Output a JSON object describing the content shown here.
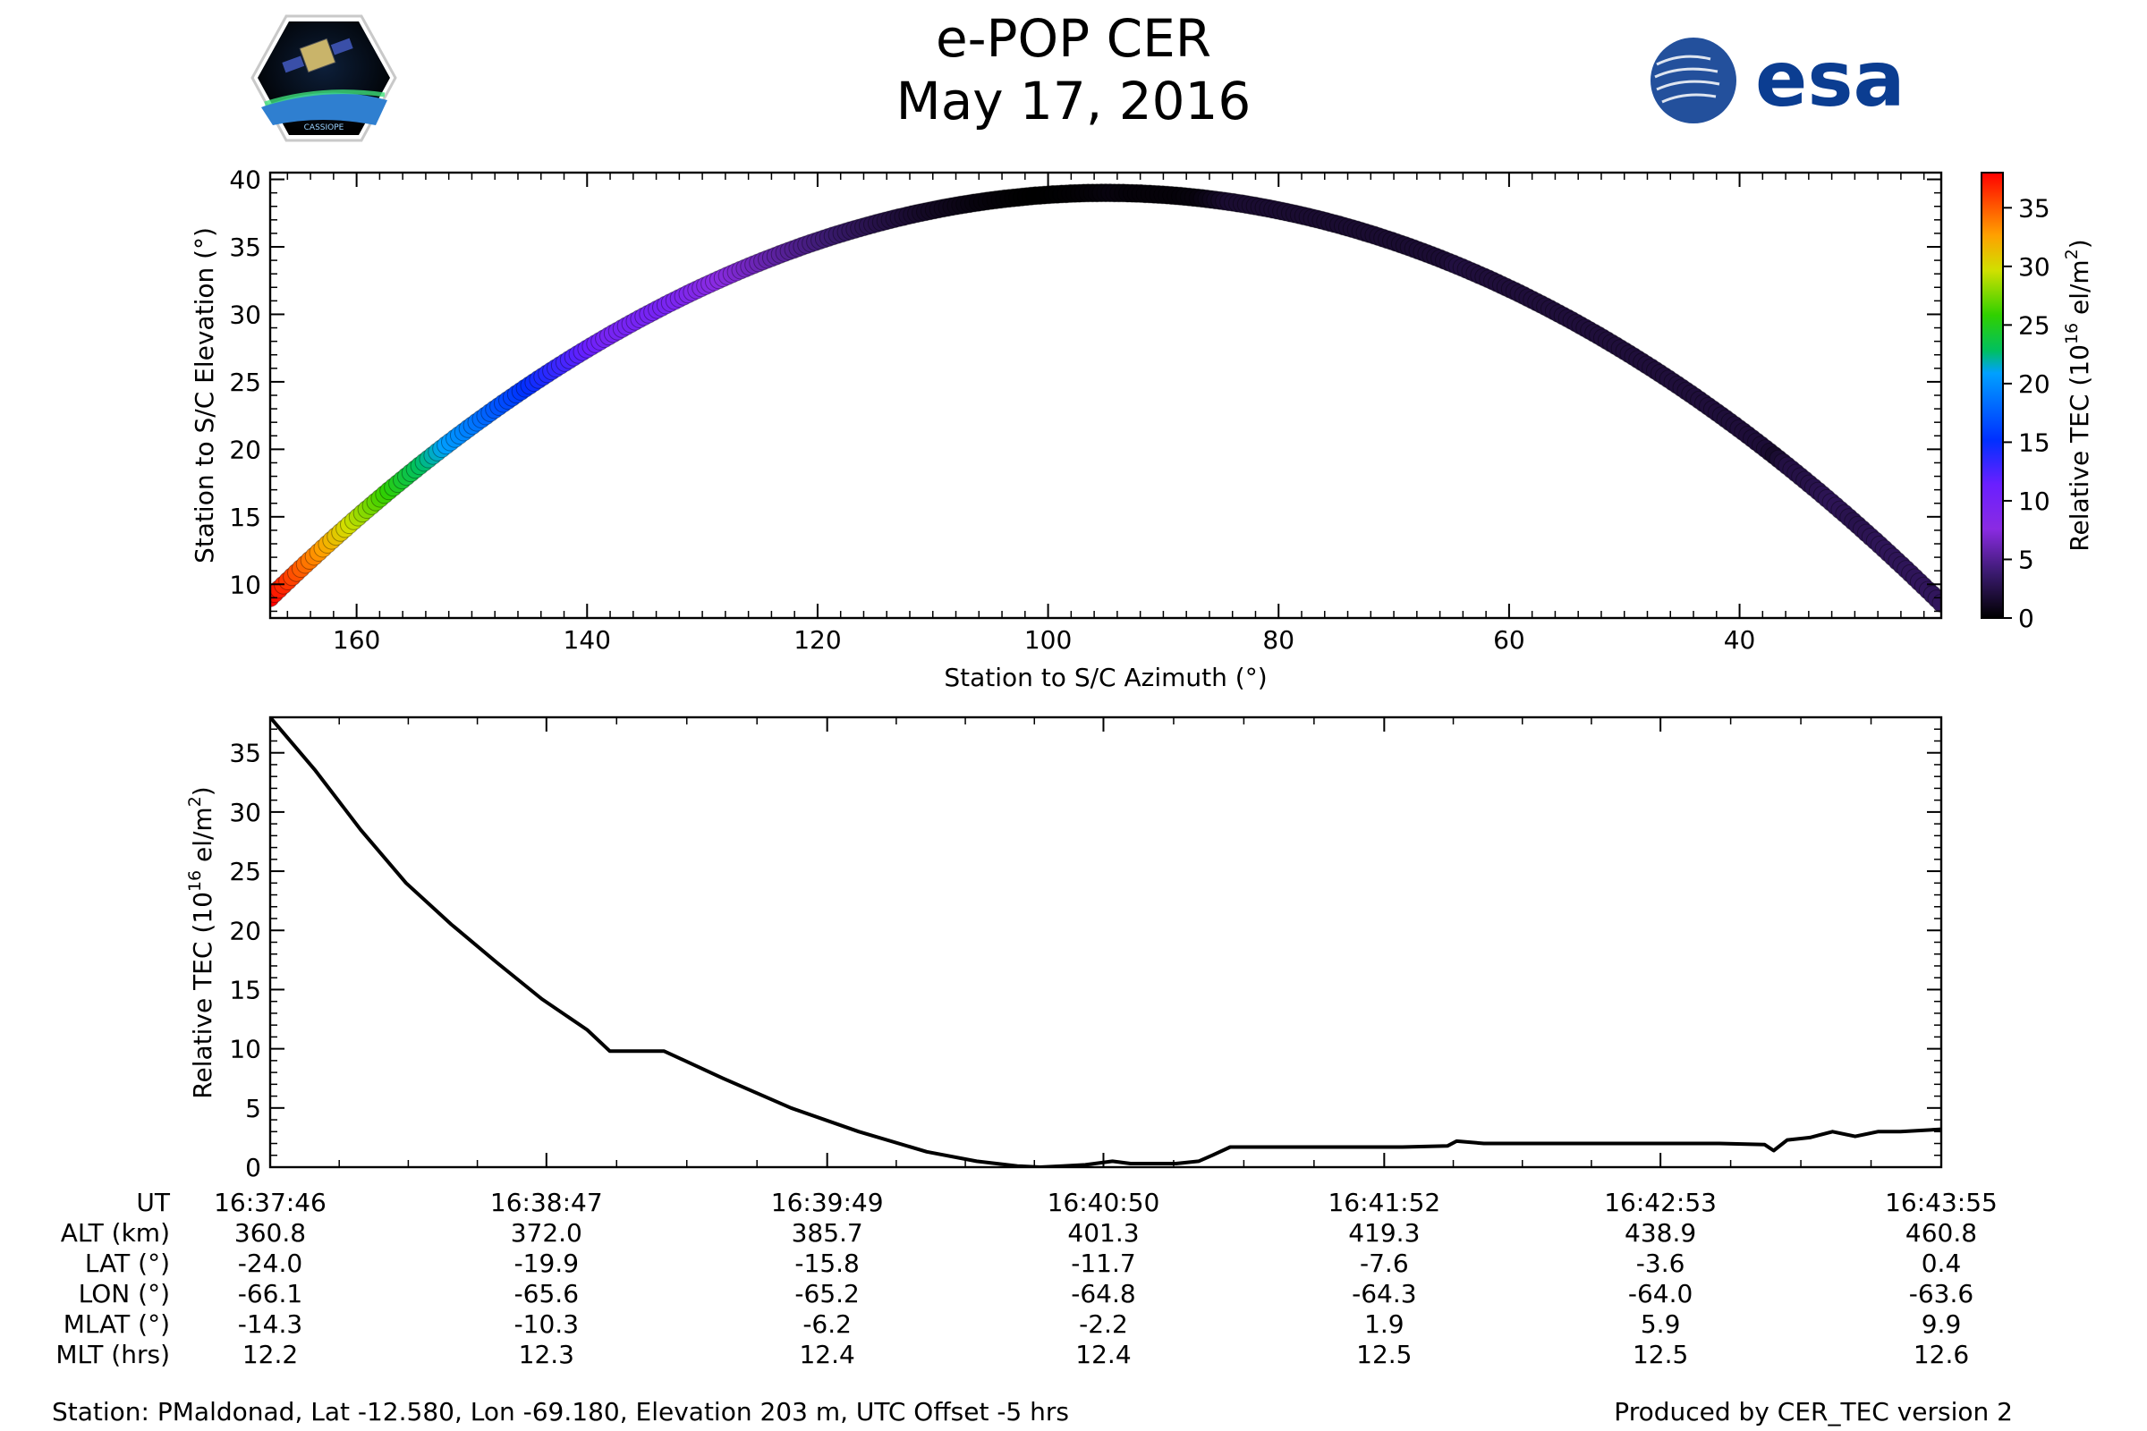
{
  "title": "e-POP CER",
  "date": "May 17, 2016",
  "logos": {
    "left": {
      "name": "cassiope-mission-badge",
      "text": "CASSIOPE"
    },
    "right": {
      "name": "esa-logo",
      "text": "esa",
      "color": "#0b3d91"
    }
  },
  "chart_data": [
    {
      "type": "scatter",
      "name": "elevation-vs-azimuth",
      "xlabel": "Station to S/C Azimuth (°)",
      "ylabel": "Station to S/C Elevation (°)",
      "xlim": [
        167.5,
        22.5
      ],
      "ylim": [
        7.5,
        40.5
      ],
      "x_ticks": [
        160,
        140,
        120,
        100,
        80,
        60,
        40
      ],
      "y_ticks": [
        10,
        15,
        20,
        25,
        30,
        35,
        40
      ],
      "color_by": "Relative TEC",
      "track": {
        "az_start": 167.5,
        "az_end": 22.5,
        "az_peak": 95,
        "el_peak": 39,
        "el_start": 9,
        "el_end": 8.6
      },
      "colorbar": {
        "label": "Relative TEC (10¹⁶ el/m²)",
        "label_main": "Relative TEC (10",
        "label_exp": "16",
        "label_unit": " el/m",
        "label_sq": "2",
        "label_close": ")",
        "range": [
          0,
          38
        ],
        "ticks": [
          0,
          5,
          10,
          15,
          20,
          25,
          30,
          35
        ],
        "stops": [
          {
            "v": 0.0,
            "c": "#000000"
          },
          {
            "v": 0.1,
            "c": "#3a1a6e"
          },
          {
            "v": 0.2,
            "c": "#8a2be2"
          },
          {
            "v": 0.3,
            "c": "#6a1fff"
          },
          {
            "v": 0.4,
            "c": "#0030ff"
          },
          {
            "v": 0.55,
            "c": "#00a0ff"
          },
          {
            "v": 0.6,
            "c": "#00c060"
          },
          {
            "v": 0.68,
            "c": "#30d000"
          },
          {
            "v": 0.78,
            "c": "#d0e000"
          },
          {
            "v": 0.86,
            "c": "#ffa000"
          },
          {
            "v": 1.0,
            "c": "#ff0000"
          }
        ]
      }
    },
    {
      "type": "line",
      "name": "relative-tec-vs-time",
      "ylabel": "Relative TEC (10¹⁶ el/m²)",
      "ylabel_main": "Relative TEC (10",
      "ylabel_exp": "16",
      "ylabel_unit": " el/m",
      "ylabel_sq": "2",
      "ylabel_close": ")",
      "xlim_s": [
        0,
        369
      ],
      "ylim": [
        0,
        38
      ],
      "y_ticks": [
        0,
        5,
        10,
        15,
        20,
        25,
        30,
        35
      ],
      "x_tick_s": [
        0,
        61,
        123,
        184,
        246,
        307,
        369
      ],
      "series": [
        {
          "name": "Relative TEC",
          "x": [
            0,
            10,
            20,
            30,
            40,
            50,
            60,
            70,
            75,
            87,
            100,
            115,
            130,
            145,
            156,
            165,
            170,
            175,
            180,
            186,
            190,
            200,
            205,
            208,
            212,
            220,
            240,
            250,
            260,
            262,
            268,
            280,
            300,
            320,
            330,
            332,
            335,
            340,
            345,
            350,
            355,
            360,
            369
          ],
          "values": [
            38,
            33.5,
            28.5,
            24,
            20.5,
            17.3,
            14.2,
            11.6,
            9.8,
            9.8,
            7.5,
            5,
            3,
            1.3,
            0.5,
            0.1,
            0,
            0.1,
            0.2,
            0.5,
            0.3,
            0.3,
            0.5,
            1.0,
            1.7,
            1.7,
            1.7,
            1.7,
            1.8,
            2.2,
            2.0,
            2.0,
            2.0,
            2.0,
            1.9,
            1.4,
            2.3,
            2.5,
            3.0,
            2.6,
            3.0,
            3.0,
            3.2
          ]
        }
      ]
    }
  ],
  "table": {
    "row_labels": [
      "UT",
      "ALT (km)",
      "LAT (°)",
      "LON (°)",
      "MLAT (°)",
      "MLT (hrs)"
    ],
    "columns": [
      [
        "16:37:46",
        "360.8",
        "-24.0",
        "-66.1",
        "-14.3",
        "12.2"
      ],
      [
        "16:38:47",
        "372.0",
        "-19.9",
        "-65.6",
        "-10.3",
        "12.3"
      ],
      [
        "16:39:49",
        "385.7",
        "-15.8",
        "-65.2",
        "-6.2",
        "12.4"
      ],
      [
        "16:40:50",
        "401.3",
        "-11.7",
        "-64.8",
        "-2.2",
        "12.4"
      ],
      [
        "16:41:52",
        "419.3",
        "-7.6",
        "-64.3",
        "1.9",
        "12.5"
      ],
      [
        "16:42:53",
        "438.9",
        "-3.6",
        "-64.0",
        "5.9",
        "12.5"
      ],
      [
        "16:43:55",
        "460.8",
        "0.4",
        "-63.6",
        "9.9",
        "12.6"
      ]
    ]
  },
  "footer": {
    "station": "Station: PMaldonad, Lat -12.580, Lon -69.180, Elevation 203 m, UTC Offset -5 hrs",
    "produced": "Produced by CER_TEC version 2"
  }
}
